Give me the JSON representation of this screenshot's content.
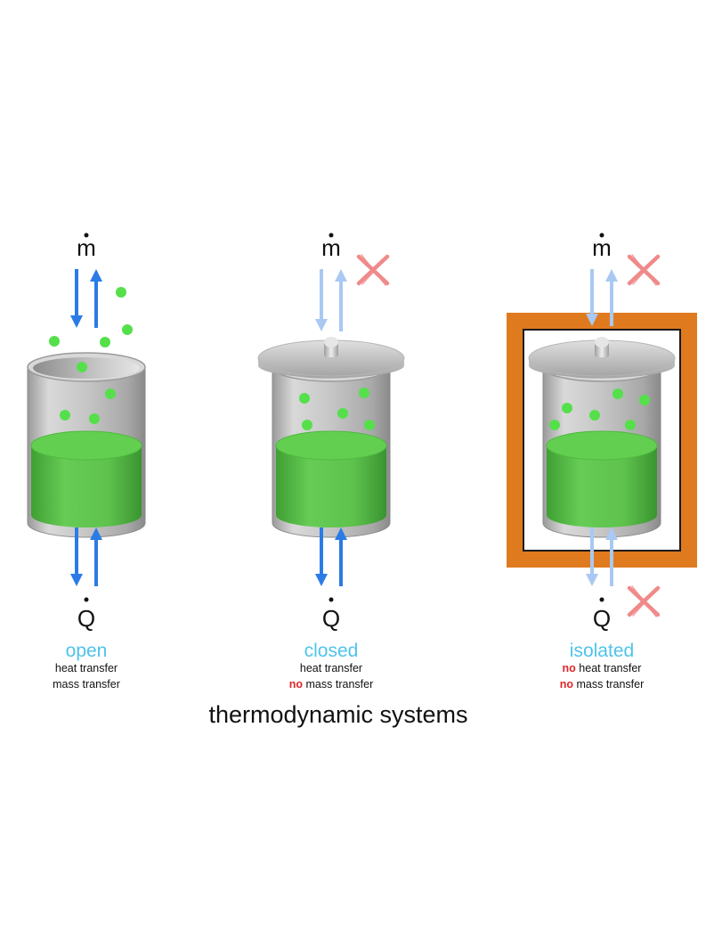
{
  "title": "thermodynamic systems",
  "symbols": {
    "mass_flow": "m",
    "heat": "Q"
  },
  "colors": {
    "label": "#4fc3ea",
    "no": "#e0262a",
    "arrow_active": "#2b7be6",
    "arrow_faded": "#a9c9f3",
    "cross": "#f08a8a",
    "insulation": "#e07a1f",
    "liquid": "#5fcf4d",
    "particle": "#55e04b"
  },
  "systems": [
    {
      "name": "open",
      "lines": [
        {
          "no": "",
          "text": "heat transfer"
        },
        {
          "no": "",
          "text": "mass transfer"
        }
      ]
    },
    {
      "name": "closed",
      "lines": [
        {
          "no": "",
          "text": "heat transfer"
        },
        {
          "no": "no",
          "text": "mass transfer"
        }
      ]
    },
    {
      "name": "isolated",
      "lines": [
        {
          "no": "no",
          "text": "heat transfer"
        },
        {
          "no": "no",
          "text": "mass transfer"
        }
      ]
    }
  ]
}
